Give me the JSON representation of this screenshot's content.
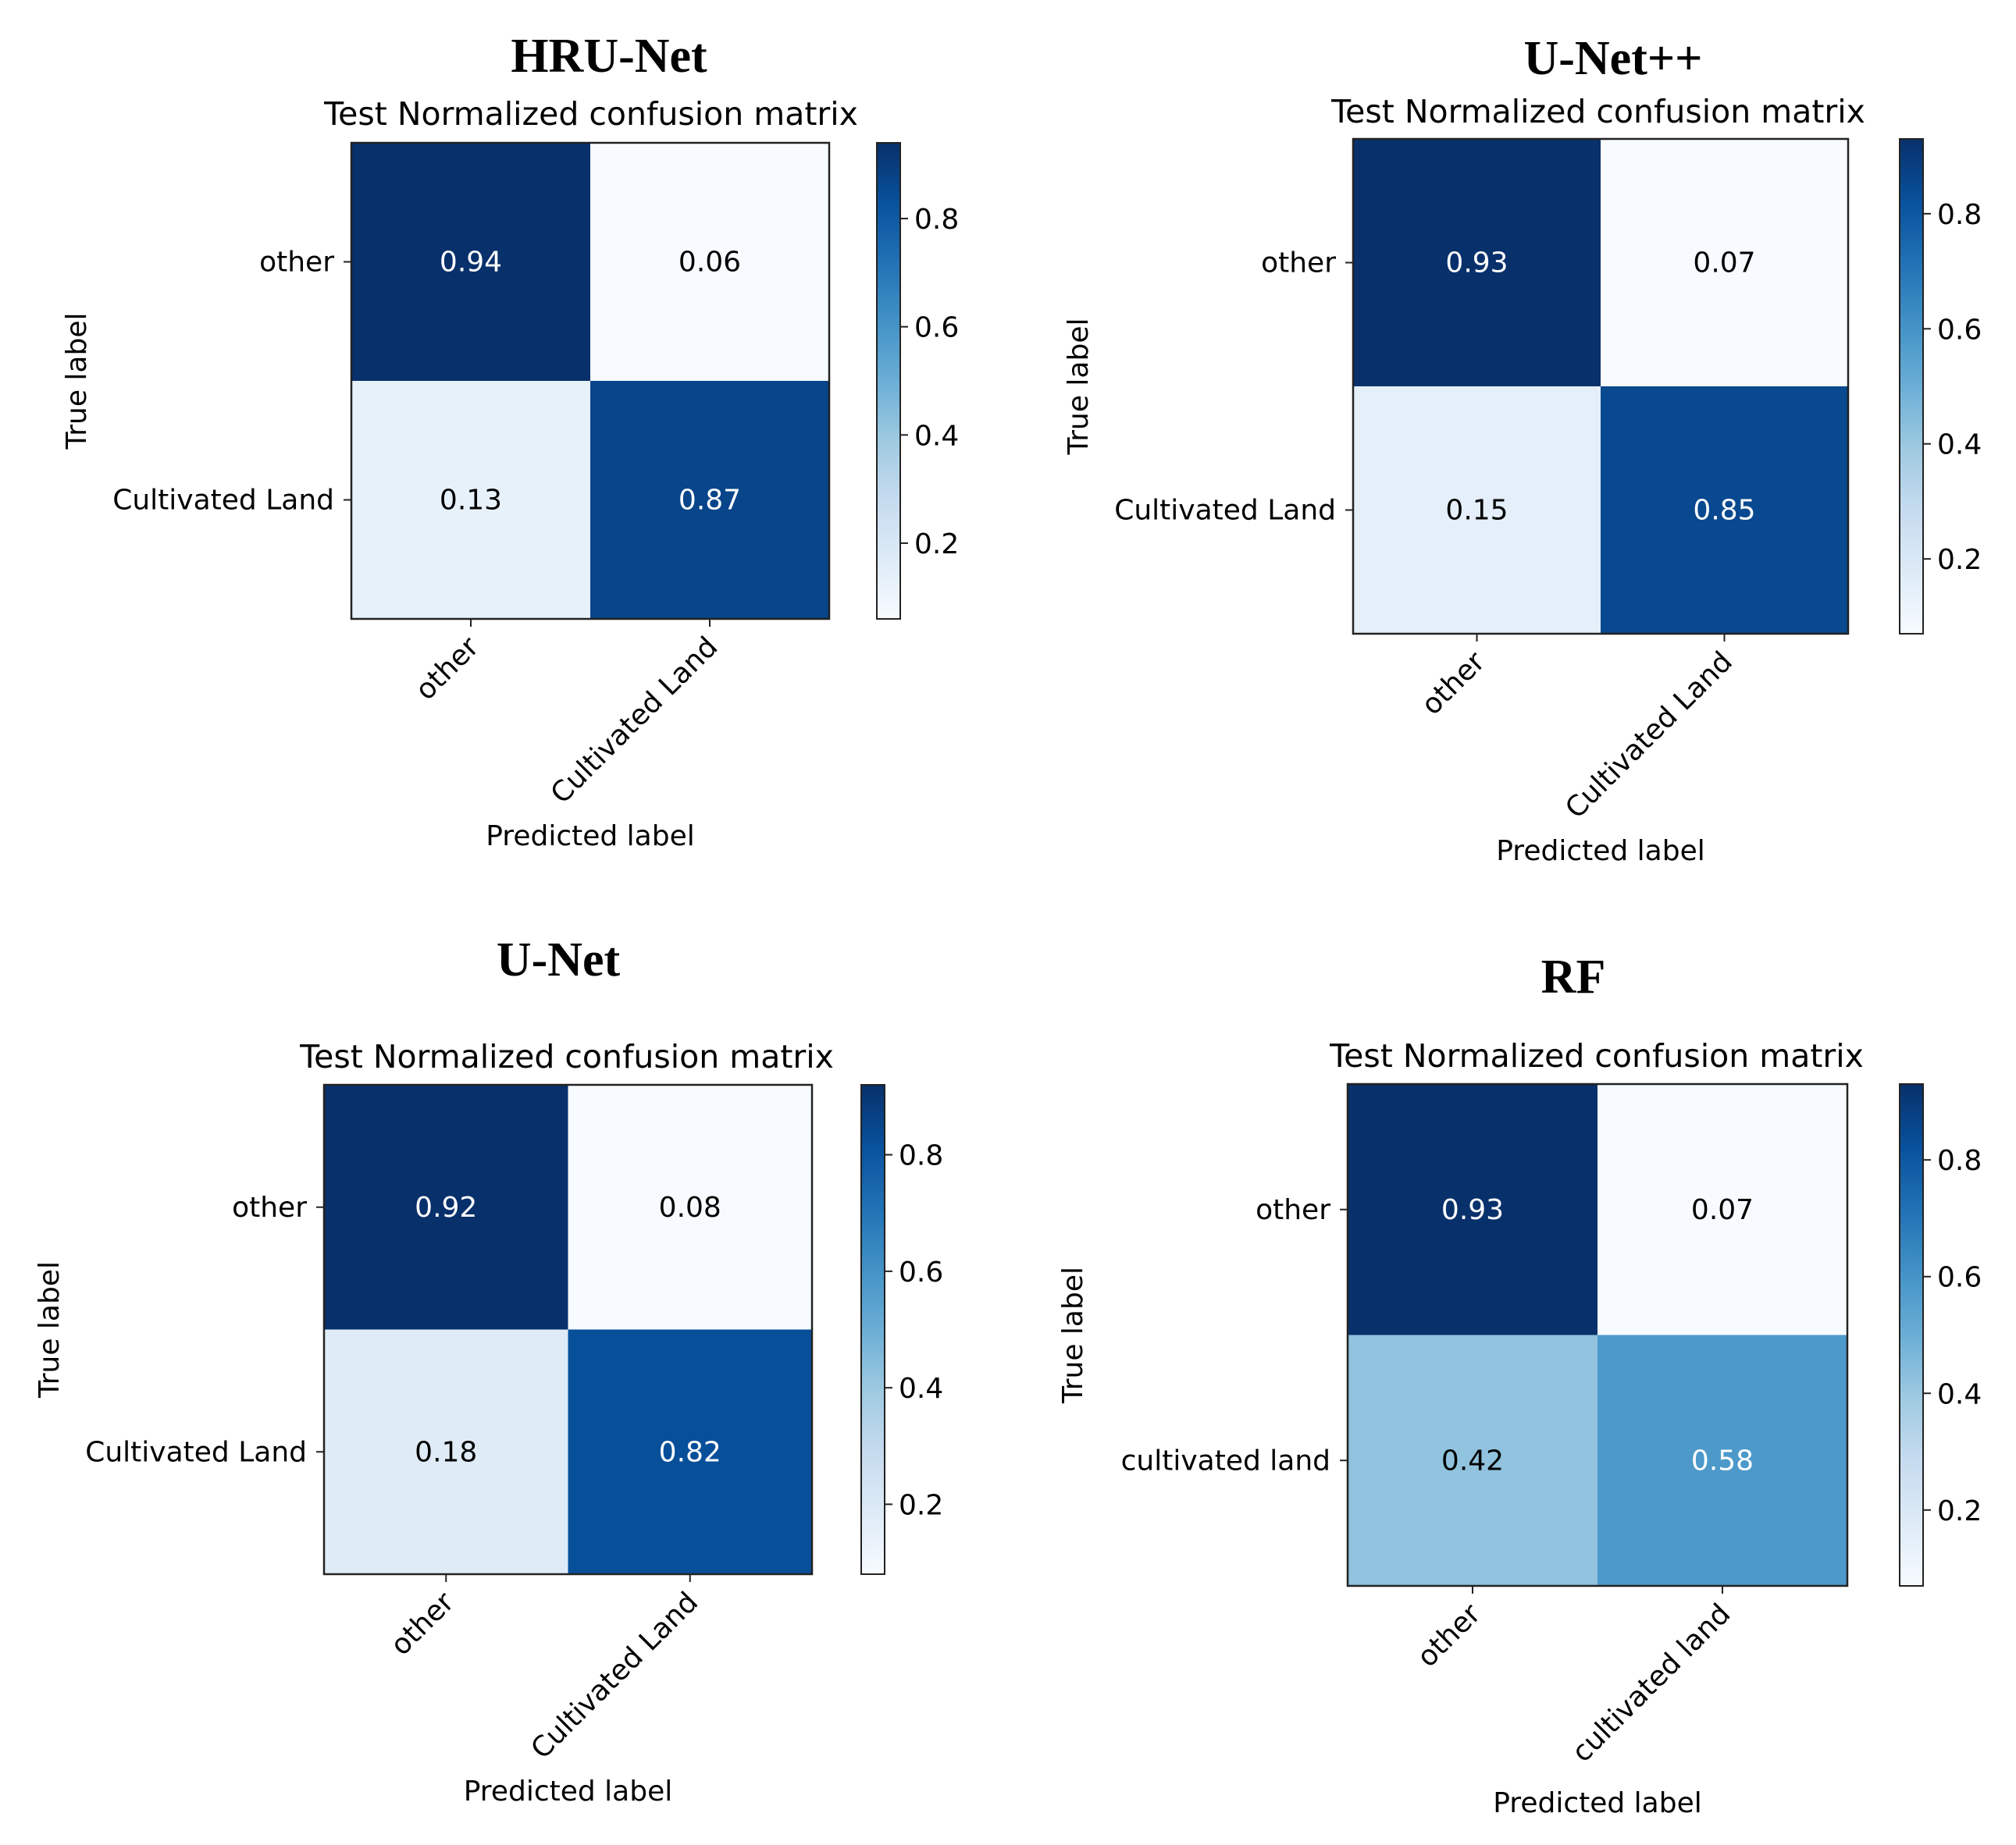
{
  "chart_data": [
    {
      "type": "heatmap",
      "model_title": "HRU-Net",
      "title": "Test Normalized confusion matrix",
      "xlabel": "Predicted label",
      "ylabel": "True label",
      "row_labels": [
        "other",
        "Cultivated Land"
      ],
      "col_labels": [
        "other",
        "Cultivated Land"
      ],
      "values": [
        [
          0.94,
          0.06
        ],
        [
          0.13,
          0.87
        ]
      ],
      "colorbar_ticks": [
        "0.2",
        "0.4",
        "0.6",
        "0.8"
      ],
      "colorbar_range": [
        0.06,
        0.94
      ]
    },
    {
      "type": "heatmap",
      "model_title": "U-Net++",
      "title": "Test Normalized confusion matrix",
      "xlabel": "Predicted label",
      "ylabel": "True label",
      "row_labels": [
        "other",
        "Cultivated Land"
      ],
      "col_labels": [
        "other",
        "Cultivated Land"
      ],
      "values": [
        [
          0.93,
          0.07
        ],
        [
          0.15,
          0.85
        ]
      ],
      "colorbar_ticks": [
        "0.2",
        "0.4",
        "0.6",
        "0.8"
      ],
      "colorbar_range": [
        0.07,
        0.93
      ]
    },
    {
      "type": "heatmap",
      "model_title": "U-Net",
      "title": "Test Normalized confusion matrix",
      "xlabel": "Predicted label",
      "ylabel": "True label",
      "row_labels": [
        "other",
        "Cultivated Land"
      ],
      "col_labels": [
        "other",
        "Cultivated Land"
      ],
      "values": [
        [
          0.92,
          0.08
        ],
        [
          0.18,
          0.82
        ]
      ],
      "colorbar_ticks": [
        "0.2",
        "0.4",
        "0.6",
        "0.8"
      ],
      "colorbar_range": [
        0.08,
        0.92
      ]
    },
    {
      "type": "heatmap",
      "model_title": "RF",
      "title": "Test Normalized confusion matrix",
      "xlabel": "Predicted label",
      "ylabel": "True label",
      "row_labels": [
        "other",
        "cultivated land"
      ],
      "col_labels": [
        "other",
        "cultivated land"
      ],
      "values": [
        [
          0.93,
          0.07
        ],
        [
          0.42,
          0.58
        ]
      ],
      "colorbar_ticks": [
        "0.2",
        "0.4",
        "0.6",
        "0.8"
      ],
      "colorbar_range": [
        0.07,
        0.93
      ]
    }
  ]
}
